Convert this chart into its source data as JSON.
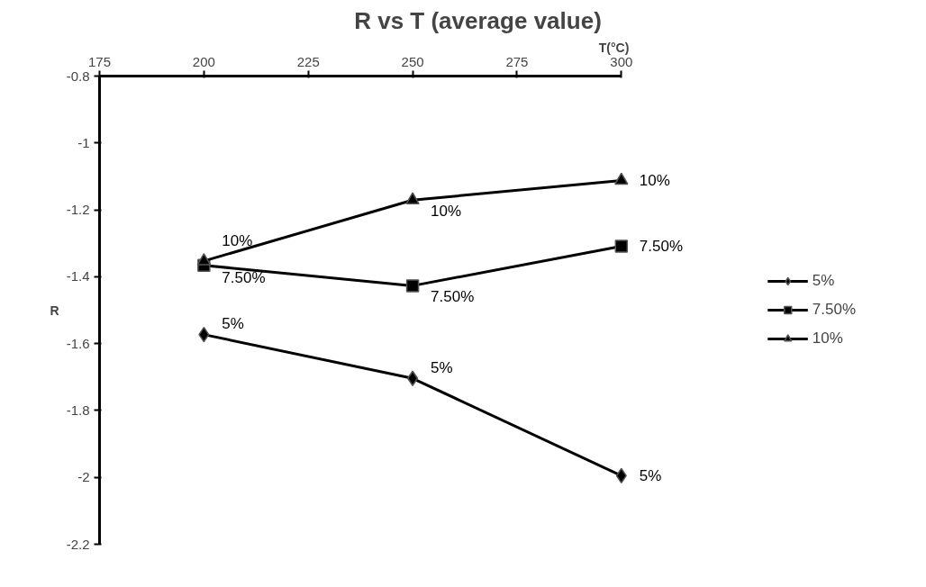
{
  "chart_data": {
    "type": "line",
    "title": "R vs T (average value)",
    "xlabel": "T(°C)",
    "ylabel": "R",
    "x": [
      200,
      250,
      300
    ],
    "xlim": [
      175,
      300
    ],
    "xticks": [
      175,
      200,
      225,
      250,
      275,
      300
    ],
    "ylim": [
      -2.2,
      -0.8
    ],
    "yticks": [
      -2.2,
      -2,
      -1.8,
      -1.6,
      -1.4,
      -1.2,
      -1,
      -0.8
    ],
    "grid": false,
    "legend": "right",
    "line_style": "solid",
    "series": [
      {
        "name": "5%",
        "color": "#000000",
        "marker": "diamond",
        "values": [
          -1.573,
          -1.704,
          -1.995
        ]
      },
      {
        "name": "7.50%",
        "color": "#000000",
        "marker": "square",
        "values": [
          -1.366,
          -1.427,
          -1.309
        ]
      },
      {
        "name": "10%",
        "color": "#000000",
        "marker": "triangle",
        "values": [
          -1.353,
          -1.171,
          -1.112
        ]
      }
    ],
    "annotations": [
      {
        "text": "5%",
        "x": 200,
        "y": -1.573
      },
      {
        "text": "5%",
        "x": 250,
        "y": -1.704
      },
      {
        "text": "5%",
        "x": 300,
        "y": -1.995
      },
      {
        "text": "7.50%",
        "x": 200,
        "y": -1.366
      },
      {
        "text": "7.50%",
        "x": 250,
        "y": -1.427
      },
      {
        "text": "7.50%",
        "x": 300,
        "y": -1.309
      },
      {
        "text": "10%",
        "x": 200,
        "y": -1.353
      },
      {
        "text": "10%",
        "x": 250,
        "y": -1.171
      },
      {
        "text": "10%",
        "x": 300,
        "y": -1.112
      }
    ]
  }
}
